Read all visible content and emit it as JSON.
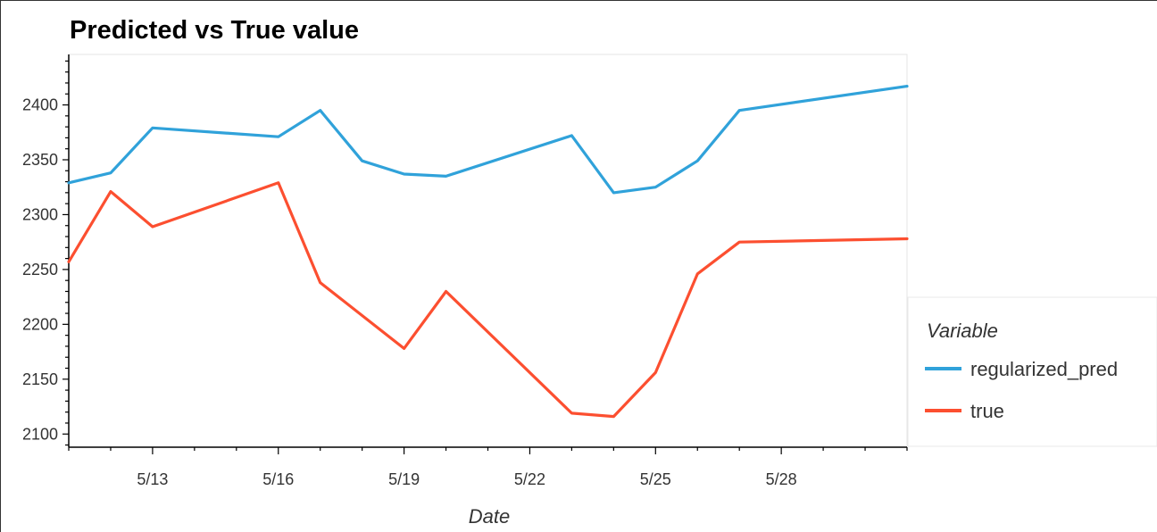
{
  "chart_data": {
    "type": "line",
    "title": "Predicted vs True value",
    "xlabel": "Date",
    "ylabel": "",
    "x_tick_labels": [
      "5/13",
      "5/16",
      "5/19",
      "5/22",
      "5/25",
      "5/28"
    ],
    "x_ticks": [
      "2019-05-13",
      "2019-05-16",
      "2019-05-19",
      "2019-05-22",
      "2019-05-25",
      "2019-05-28"
    ],
    "xlim": [
      "2019-05-11",
      "2019-05-31"
    ],
    "y_ticks": [
      2100,
      2150,
      2200,
      2250,
      2300,
      2350,
      2400
    ],
    "ylim": [
      2088,
      2446
    ],
    "grid": false,
    "legend": {
      "title": "Variable",
      "placement": "right"
    },
    "series": [
      {
        "name": "regularized_pred",
        "color": "#30a2da",
        "points": [
          [
            "2019-05-11",
            2329
          ],
          [
            "2019-05-12",
            2338
          ],
          [
            "2019-05-13",
            2379
          ],
          [
            "2019-05-16",
            2371
          ],
          [
            "2019-05-17",
            2395
          ],
          [
            "2019-05-18",
            2349
          ],
          [
            "2019-05-19",
            2337
          ],
          [
            "2019-05-20",
            2335
          ],
          [
            "2019-05-23",
            2372
          ],
          [
            "2019-05-24",
            2320
          ],
          [
            "2019-05-25",
            2325
          ],
          [
            "2019-05-26",
            2349
          ],
          [
            "2019-05-27",
            2395
          ],
          [
            "2019-05-31",
            2417
          ]
        ]
      },
      {
        "name": "true",
        "color": "#fc4f30",
        "points": [
          [
            "2019-05-11",
            2257
          ],
          [
            "2019-05-12",
            2321
          ],
          [
            "2019-05-13",
            2289
          ],
          [
            "2019-05-16",
            2329
          ],
          [
            "2019-05-17",
            2238
          ],
          [
            "2019-05-19",
            2178
          ],
          [
            "2019-05-20",
            2230
          ],
          [
            "2019-05-23",
            2119
          ],
          [
            "2019-05-24",
            2116
          ],
          [
            "2019-05-25",
            2156
          ],
          [
            "2019-05-26",
            2246
          ],
          [
            "2019-05-27",
            2275
          ],
          [
            "2019-05-31",
            2278
          ]
        ]
      }
    ]
  }
}
